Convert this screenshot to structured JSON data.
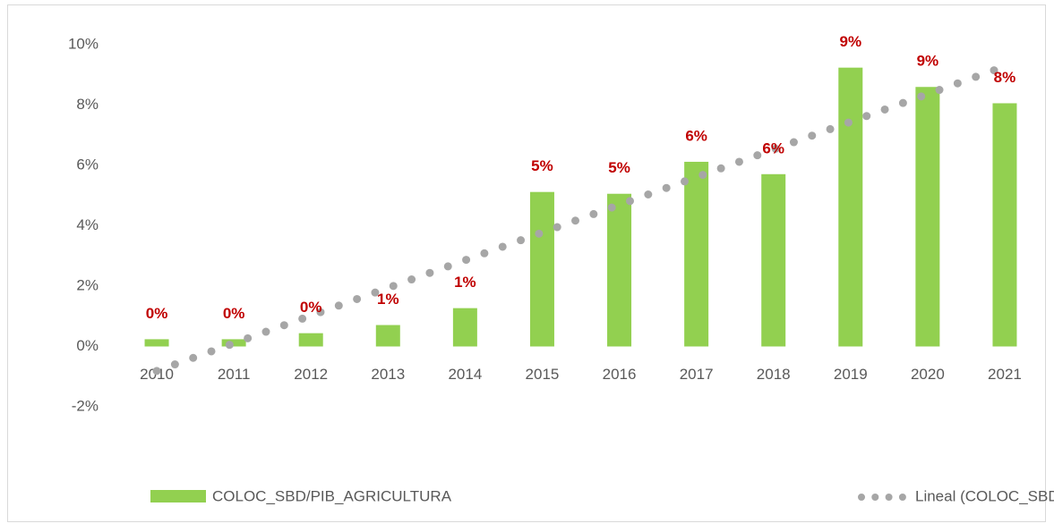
{
  "chart_data": {
    "type": "bar",
    "categories": [
      "2010",
      "2011",
      "2012",
      "2013",
      "2014",
      "2015",
      "2016",
      "2017",
      "2018",
      "2019",
      "2020",
      "2021"
    ],
    "series": [
      {
        "name": "COLOC_SBD/PIB_AGRICULTURA",
        "color": "#92d050",
        "values": [
          0.24,
          0.24,
          0.44,
          0.71,
          1.27,
          5.12,
          5.06,
          6.12,
          5.71,
          9.24,
          8.6,
          8.06
        ],
        "value_labels": [
          "0%",
          "0%",
          "0%",
          "1%",
          "1%",
          "5%",
          "5%",
          "6%",
          "6%",
          "9%",
          "9%",
          "8%"
        ]
      }
    ],
    "trendline": {
      "name": "Lineal (COLOC_SBD/PIB_AGRICULTURA)",
      "color": "#a6a6a6"
    },
    "ylim": [
      -2,
      10
    ],
    "yticks": [
      {
        "value": -2,
        "label": "-2%"
      },
      {
        "value": 0,
        "label": "0%"
      },
      {
        "value": 2,
        "label": "2%"
      },
      {
        "value": 4,
        "label": "4%"
      },
      {
        "value": 6,
        "label": "6%"
      },
      {
        "value": 8,
        "label": "8%"
      },
      {
        "value": 10,
        "label": "10%"
      }
    ],
    "grid": false,
    "legend": "bottom"
  }
}
